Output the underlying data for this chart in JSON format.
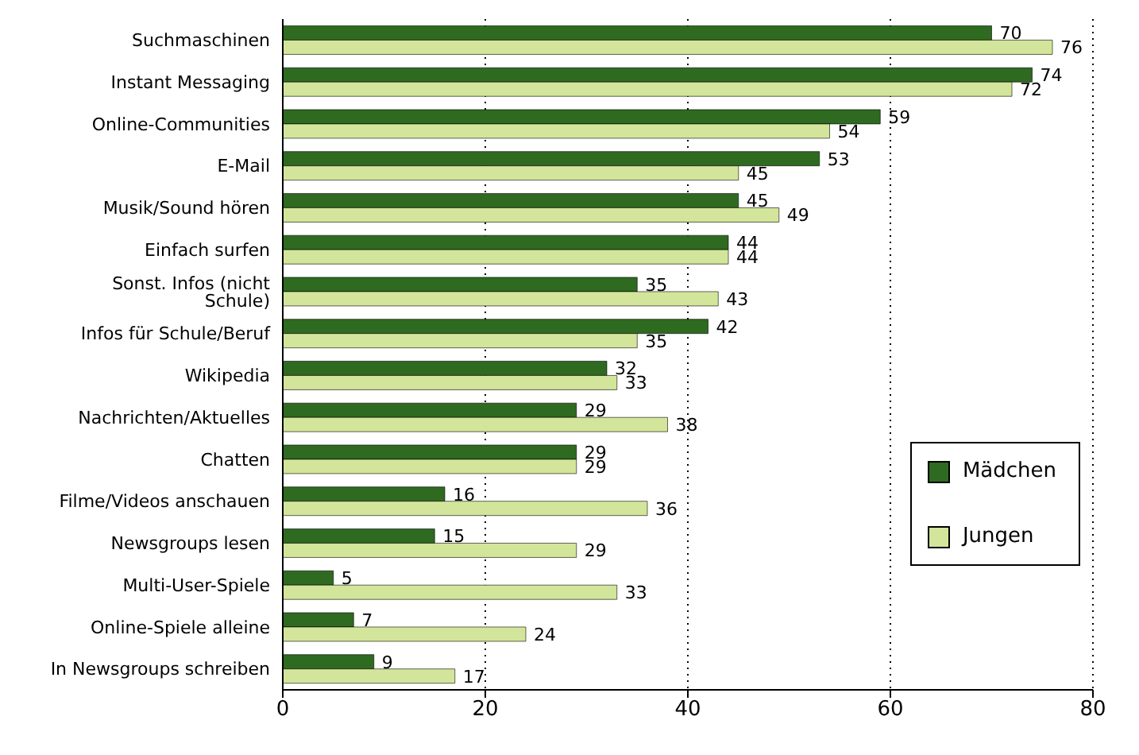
{
  "chart_data": {
    "type": "bar",
    "orientation": "horizontal",
    "categories": [
      "Suchmaschinen",
      "Instant Messaging",
      "Online-Communities",
      "E-Mail",
      "Musik/Sound hören",
      "Einfach surfen",
      "Sonst. Infos (nicht Schule)",
      "Infos für Schule/Beruf",
      "Wikipedia",
      "Nachrichten/Aktuelles",
      "Chatten",
      "Filme/Videos anschauen",
      "Newsgroups lesen",
      "Multi-User-Spiele",
      "Online-Spiele alleine",
      "In Newsgroups schreiben"
    ],
    "series": [
      {
        "name": "Mädchen",
        "color": "#2e6a20",
        "values": [
          70,
          74,
          59,
          53,
          45,
          44,
          35,
          42,
          32,
          29,
          29,
          16,
          15,
          5,
          7,
          9
        ]
      },
      {
        "name": "Jungen",
        "color": "#d3e59a",
        "values": [
          76,
          72,
          54,
          45,
          49,
          44,
          43,
          35,
          33,
          38,
          29,
          36,
          29,
          33,
          24,
          17
        ]
      }
    ],
    "xlim": [
      0,
      80
    ],
    "xticks": [
      0,
      20,
      40,
      60,
      80
    ],
    "grid": "x",
    "legend": "right",
    "data_labels": true
  }
}
